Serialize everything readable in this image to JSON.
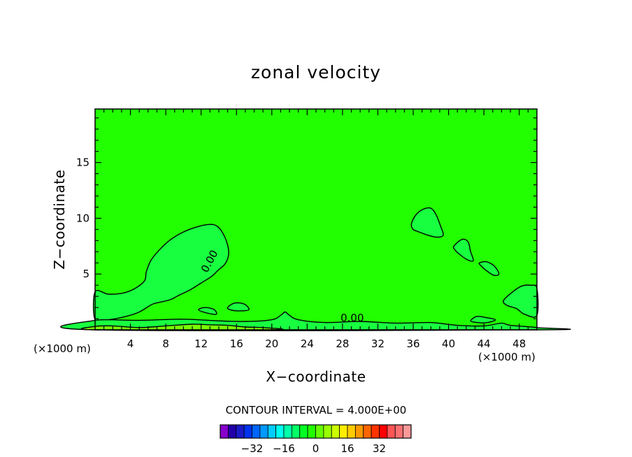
{
  "chart_data": {
    "type": "contour",
    "title": "zonal velocity",
    "xlabel": "X−coordinate",
    "ylabel": "Z−coordinate",
    "x_unit": "(×1000 m)",
    "y_unit": "(×1000 m)",
    "xlim": [
      0,
      50
    ],
    "ylim": [
      0,
      19.8
    ],
    "x_ticks": [
      4,
      8,
      12,
      16,
      20,
      24,
      28,
      32,
      36,
      40,
      44,
      48
    ],
    "x_tick_labels": [
      "4",
      "8",
      "12",
      "16",
      "20",
      "24",
      "28",
      "32",
      "36",
      "40",
      "44",
      "48"
    ],
    "y_ticks": [
      5,
      10,
      15
    ],
    "y_tick_labels": [
      "5",
      "10",
      "15"
    ],
    "background_fill_color": "#22ff00",
    "contour_interval_text": "CONTOUR INTERVAL = 4.000E+00",
    "contour_labels": [
      {
        "text": "0.00",
        "x": 13.3,
        "y": 6.0
      },
      {
        "text": "0.00",
        "x": 29.1,
        "y": 0.75
      }
    ],
    "regions": [
      {
        "level": "0 to 4",
        "color": "#18ff40",
        "points": [
          [
            0,
            3.4
          ],
          [
            1.5,
            3.2
          ],
          [
            3.2,
            3.3
          ],
          [
            4.5,
            3.7
          ],
          [
            5.6,
            4.4
          ],
          [
            5.8,
            5.2
          ],
          [
            6.3,
            6.2
          ],
          [
            7.2,
            7.1
          ],
          [
            8.4,
            8.0
          ],
          [
            9.8,
            8.7
          ],
          [
            11.4,
            9.2
          ],
          [
            12.9,
            9.45
          ],
          [
            13.8,
            9.3
          ],
          [
            14.5,
            8.6
          ],
          [
            15.0,
            7.6
          ],
          [
            15.1,
            6.7
          ],
          [
            14.7,
            5.9
          ],
          [
            14.0,
            5.4
          ],
          [
            13.2,
            4.8
          ],
          [
            12.0,
            4.2
          ],
          [
            10.8,
            3.6
          ],
          [
            9.5,
            3.1
          ],
          [
            8.5,
            2.7
          ],
          [
            7.5,
            2.5
          ],
          [
            6.5,
            2.3
          ],
          [
            5.0,
            1.6
          ],
          [
            3.5,
            1.2
          ],
          [
            1.5,
            0.9
          ],
          [
            0,
            0.9
          ]
        ]
      },
      {
        "level": "0 to 4",
        "color": "#18ff40",
        "points": [
          [
            35.8,
            9.5
          ],
          [
            36.3,
            10.3
          ],
          [
            37.1,
            10.8
          ],
          [
            38.0,
            10.9
          ],
          [
            38.6,
            10.3
          ],
          [
            39.1,
            9.3
          ],
          [
            39.4,
            8.5
          ],
          [
            38.7,
            8.3
          ],
          [
            37.6,
            8.5
          ],
          [
            36.6,
            8.8
          ],
          [
            36.0,
            9.0
          ]
        ]
      },
      {
        "level": "0 to 4",
        "color": "#18ff40",
        "points": [
          [
            40.6,
            7.5
          ],
          [
            41.5,
            8.1
          ],
          [
            42.2,
            7.9
          ],
          [
            42.5,
            7.0
          ],
          [
            42.8,
            6.2
          ],
          [
            42.1,
            6.3
          ],
          [
            41.2,
            6.8
          ],
          [
            40.7,
            7.2
          ]
        ]
      },
      {
        "level": "0 to 4",
        "color": "#18ff40",
        "points": [
          [
            43.5,
            6.0
          ],
          [
            44.3,
            6.1
          ],
          [
            45.2,
            5.7
          ],
          [
            45.7,
            5.0
          ],
          [
            45.1,
            4.9
          ],
          [
            44.3,
            5.3
          ],
          [
            43.6,
            5.8
          ]
        ]
      },
      {
        "level": "0 to 4",
        "color": "#18ff40",
        "points": [
          [
            46.2,
            2.6
          ],
          [
            47.1,
            3.3
          ],
          [
            48.2,
            3.9
          ],
          [
            49.3,
            4.0
          ],
          [
            50,
            3.7
          ],
          [
            50,
            1.3
          ],
          [
            48.6,
            1.4
          ],
          [
            47.7,
            1.9
          ],
          [
            46.6,
            2.2
          ]
        ]
      },
      {
        "level": "0 to 4",
        "color": "#18ff40",
        "points": [
          [
            11.7,
            1.8
          ],
          [
            12.5,
            2.0
          ],
          [
            13.5,
            1.8
          ],
          [
            13.7,
            1.4
          ],
          [
            12.7,
            1.5
          ]
        ]
      },
      {
        "level": "0 to 4",
        "color": "#18ff40",
        "points": [
          [
            15.0,
            2.0
          ],
          [
            15.8,
            2.4
          ],
          [
            16.9,
            2.3
          ],
          [
            17.4,
            1.8
          ],
          [
            16.2,
            1.7
          ],
          [
            15.3,
            1.8
          ]
        ]
      },
      {
        "level": "0 to 4",
        "color": "#18ff40",
        "points": [
          [
            0,
            0.85
          ],
          [
            5,
            0.85
          ],
          [
            10,
            0.95
          ],
          [
            14,
            0.8
          ],
          [
            17,
            0.75
          ],
          [
            20,
            0.9
          ],
          [
            21,
            1.3
          ],
          [
            21.5,
            1.6
          ],
          [
            22,
            1.3
          ],
          [
            23,
            0.9
          ],
          [
            26,
            0.65
          ],
          [
            30,
            0.75
          ],
          [
            34,
            0.6
          ],
          [
            38,
            0.65
          ],
          [
            41,
            0.4
          ],
          [
            44,
            0.35
          ],
          [
            46,
            0.6
          ],
          [
            47,
            0.4
          ],
          [
            50,
            0.2
          ],
          [
            50,
            0
          ],
          [
            0,
            0
          ]
        ]
      },
      {
        "level": "0 to 4",
        "color": "#18ff40",
        "points": [
          [
            42.5,
            0.8
          ],
          [
            43.2,
            1.2
          ],
          [
            44.2,
            1.1
          ],
          [
            45.3,
            0.9
          ],
          [
            44.4,
            0.65
          ],
          [
            43.3,
            0.65
          ]
        ]
      },
      {
        "level": "4 to 8",
        "color": "#77ff00",
        "points": [
          [
            0,
            0.3
          ],
          [
            2,
            0.35
          ],
          [
            5,
            0.2
          ],
          [
            8,
            0.35
          ],
          [
            11,
            0.5
          ],
          [
            13,
            0.45
          ],
          [
            15,
            0.4
          ],
          [
            17,
            0.25
          ],
          [
            19,
            0.2
          ],
          [
            20,
            0
          ],
          [
            0,
            0
          ]
        ]
      }
    ],
    "colorbar": {
      "colors": [
        "#8800cc",
        "#2200aa",
        "#1a1ac8",
        "#0033ee",
        "#0066ff",
        "#0099ff",
        "#00ccff",
        "#00ffee",
        "#00ffaa",
        "#00ff66",
        "#00ff22",
        "#22ff00",
        "#66ff00",
        "#99ff00",
        "#ccff00",
        "#ffee00",
        "#ffcc00",
        "#ff9900",
        "#ff6600",
        "#ff3300",
        "#ff0000",
        "#ff5555",
        "#ff7070",
        "#ff9999"
      ],
      "tick_labels": [
        "−32",
        "−16",
        "0",
        "16",
        "32"
      ]
    }
  }
}
